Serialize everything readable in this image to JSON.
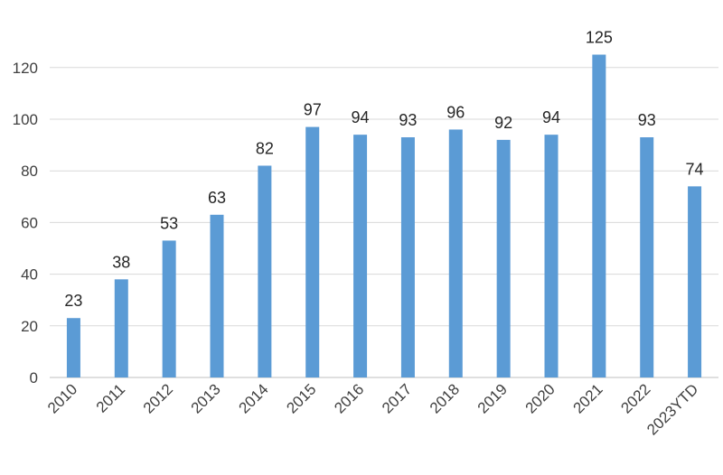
{
  "chart_data": {
    "type": "bar",
    "title": "",
    "xlabel": "",
    "ylabel": "",
    "categories": [
      "2010",
      "2011",
      "2012",
      "2013",
      "2014",
      "2015",
      "2016",
      "2017",
      "2018",
      "2019",
      "2020",
      "2021",
      "2022",
      "2023YTD"
    ],
    "values": [
      23,
      38,
      53,
      63,
      82,
      97,
      94,
      93,
      96,
      92,
      94,
      125,
      93,
      74
    ],
    "ylim": [
      0,
      140
    ],
    "yticks": [
      0,
      20,
      40,
      60,
      80,
      100,
      120
    ],
    "grid": true,
    "legend": "none",
    "bar_color": "#5b9bd5"
  }
}
